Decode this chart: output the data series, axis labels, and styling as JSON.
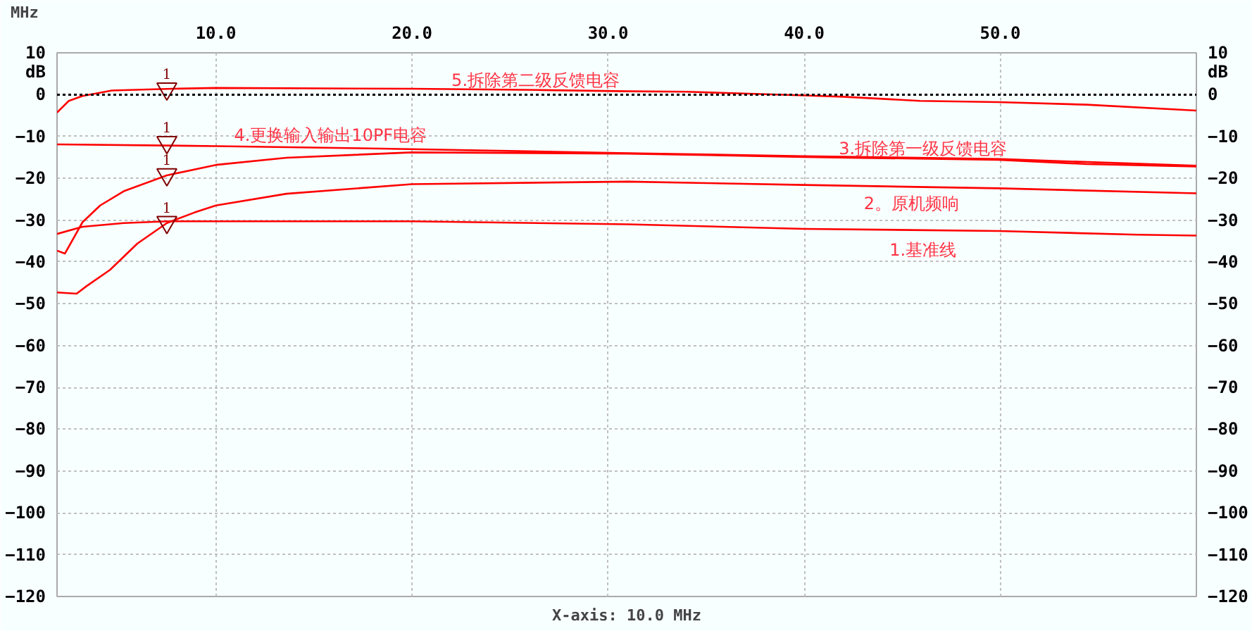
{
  "chart_data": {
    "type": "line",
    "xlabel": "MHz",
    "ylabel": "dB",
    "y2label": "dB",
    "xlim": [
      1.9,
      60.0
    ],
    "xticks": [
      {
        "value": 10,
        "label": "10.0"
      },
      {
        "value": 20,
        "label": "20.0"
      },
      {
        "value": 30,
        "label": "30.0"
      },
      {
        "value": 40,
        "label": "40.0"
      },
      {
        "value": 50,
        "label": "50.0"
      }
    ],
    "ylim": [
      -120,
      10
    ],
    "yticks": [
      -120,
      -110,
      -100,
      -90,
      -80,
      -70,
      -60,
      -50,
      -40,
      -30,
      -20,
      -10,
      0,
      10
    ],
    "y2lim": [
      -120,
      10
    ],
    "y2ticks": [
      -120,
      -110,
      -100,
      -90,
      -80,
      -70,
      -60,
      -50,
      -40,
      -30,
      -20,
      -10,
      0,
      10
    ],
    "grid": true,
    "ref_lines": [
      {
        "axis": "y",
        "value": 0,
        "color": "#000000",
        "line_style": "dotted"
      }
    ],
    "annotations": [
      "X-axis: 10.0 MHz"
    ],
    "series": [
      {
        "name": "1.基准线",
        "color": "#ff0000",
        "x": [
          1.9,
          3.2,
          5.3,
          7.5,
          20,
          31,
          40,
          49.9,
          57,
          60
        ],
        "values": [
          -33.3,
          -31.6,
          -30.7,
          -30.3,
          -30.3,
          -31,
          -32.1,
          -32.6,
          -33.5,
          -33.7
        ]
      },
      {
        "name": "2。原机频响",
        "color": "#ff0000",
        "x": [
          1.9,
          2.9,
          3.4,
          4.6,
          6,
          7.5,
          8.9,
          10,
          13.6,
          20,
          31,
          40,
          49.9,
          60
        ],
        "values": [
          -47.3,
          -47.6,
          -45.8,
          -41.9,
          -35.6,
          -30.7,
          -28.2,
          -26.5,
          -23.7,
          -21.4,
          -20.8,
          -21.6,
          -22.4,
          -23.6
        ]
      },
      {
        "name": "3.拆除第一级反馈电容",
        "color": "#ff0000",
        "x": [
          1.9,
          2.3,
          3.2,
          4.1,
          5.3,
          7.5,
          10,
          13.6,
          20,
          31,
          40,
          49.9,
          54.4,
          60
        ],
        "values": [
          -37.3,
          -38,
          -30.5,
          -26.5,
          -23.1,
          -19.3,
          -16.8,
          -15.1,
          -13.8,
          -14.1,
          -14.9,
          -15.6,
          -16.6,
          -17.2
        ]
      },
      {
        "name": "4.更换输入输出10PF电容",
        "color": "#ff0000",
        "x": [
          1.9,
          10,
          18.4,
          31,
          40,
          50,
          60
        ],
        "values": [
          -11.9,
          -12.3,
          -12.9,
          -14,
          -14.7,
          -15.4,
          -17
        ]
      },
      {
        "name": "5.拆除第二级反馈电容",
        "color": "#ff0000",
        "x": [
          1.9,
          2.5,
          3.2,
          4.7,
          7.8,
          10,
          20,
          26.6,
          31,
          34,
          40,
          42,
          45.9,
          49.9,
          54.4,
          60
        ],
        "values": [
          -4.3,
          -1.5,
          -0.3,
          1.0,
          1.4,
          1.6,
          1.4,
          1.1,
          0.8,
          0.7,
          -0.2,
          -0.5,
          -1.5,
          -1.8,
          -2.4,
          -3.8
        ]
      },
      {
        "name": "1",
        "type": "scatter",
        "marker": "triangle",
        "color": "#800000",
        "x": [
          7.5,
          7.5,
          7.5,
          7.5
        ],
        "values": [
          1.4,
          -11.4,
          -19.1,
          -30.5
        ]
      }
    ]
  }
}
